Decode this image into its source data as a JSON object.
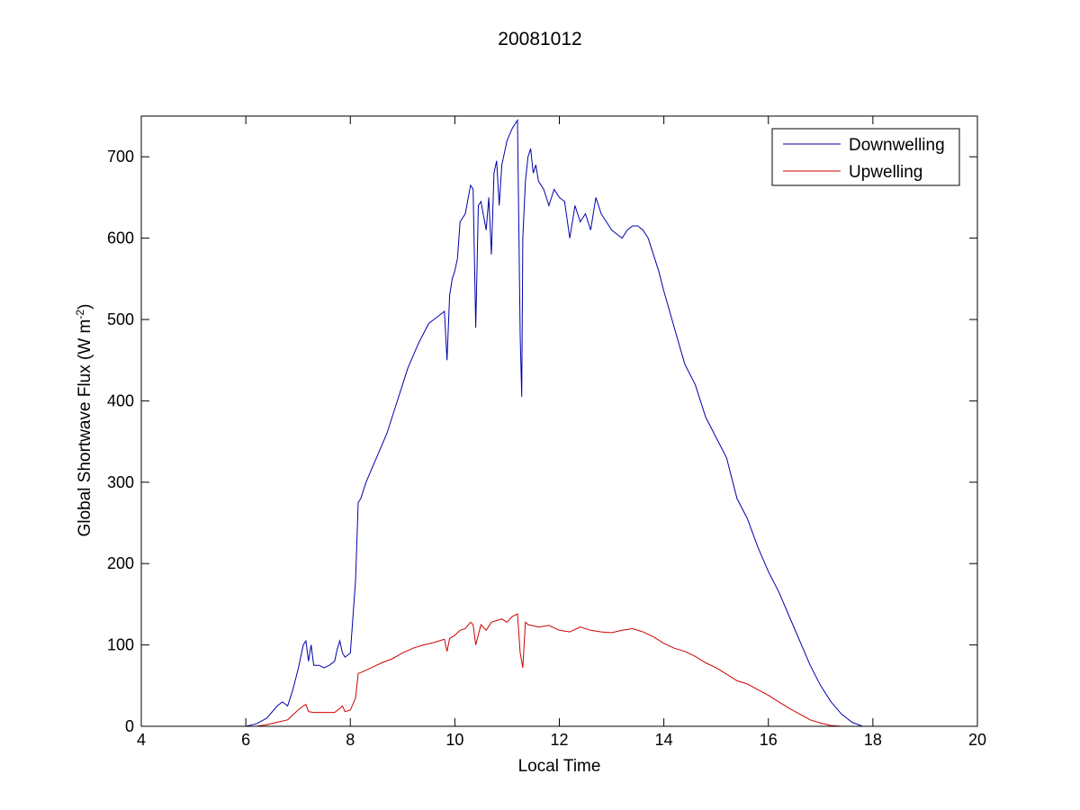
{
  "chart_data": {
    "type": "line",
    "title": "20081012",
    "xlabel": "Local Time",
    "ylabel": {
      "text": "Global Shortwave Flux (W m",
      "sup": "-2",
      "close": ")"
    },
    "xlim": [
      4,
      20
    ],
    "ylim": [
      0,
      750
    ],
    "xticks": [
      4,
      6,
      8,
      10,
      12,
      14,
      16,
      18,
      20
    ],
    "yticks": [
      0,
      100,
      200,
      300,
      400,
      500,
      600,
      700
    ],
    "grid": false,
    "legend_position": "top-right",
    "series": [
      {
        "name": "Downwelling",
        "color": "#0000aa",
        "x": [
          6.0,
          6.2,
          6.4,
          6.6,
          6.7,
          6.8,
          6.9,
          7.0,
          7.1,
          7.15,
          7.2,
          7.25,
          7.3,
          7.4,
          7.5,
          7.6,
          7.7,
          7.75,
          7.8,
          7.85,
          7.9,
          8.0,
          8.1,
          8.15,
          8.2,
          8.3,
          8.5,
          8.7,
          8.9,
          9.0,
          9.1,
          9.3,
          9.5,
          9.6,
          9.7,
          9.8,
          9.85,
          9.9,
          9.95,
          10.0,
          10.05,
          10.1,
          10.2,
          10.3,
          10.35,
          10.4,
          10.45,
          10.5,
          10.6,
          10.65,
          10.7,
          10.75,
          10.8,
          10.85,
          10.9,
          11.0,
          11.1,
          11.2,
          11.25,
          11.28,
          11.3,
          11.35,
          11.4,
          11.45,
          11.5,
          11.55,
          11.6,
          11.7,
          11.8,
          11.9,
          12.0,
          12.1,
          12.2,
          12.3,
          12.4,
          12.5,
          12.6,
          12.7,
          12.8,
          12.9,
          13.0,
          13.1,
          13.2,
          13.3,
          13.4,
          13.5,
          13.6,
          13.7,
          13.8,
          13.9,
          14.0,
          14.2,
          14.4,
          14.6,
          14.8,
          15.0,
          15.2,
          15.4,
          15.6,
          15.8,
          16.0,
          16.2,
          16.4,
          16.6,
          16.8,
          17.0,
          17.2,
          17.4,
          17.6,
          17.8
        ],
        "y": [
          0,
          3,
          10,
          25,
          30,
          25,
          45,
          70,
          100,
          105,
          80,
          100,
          75,
          75,
          72,
          75,
          80,
          95,
          105,
          90,
          85,
          90,
          180,
          275,
          280,
          300,
          330,
          360,
          400,
          420,
          440,
          470,
          495,
          500,
          505,
          510,
          450,
          530,
          550,
          560,
          575,
          620,
          630,
          665,
          660,
          490,
          640,
          645,
          610,
          650,
          580,
          680,
          695,
          640,
          690,
          720,
          735,
          745,
          480,
          405,
          600,
          670,
          700,
          710,
          680,
          690,
          670,
          660,
          640,
          660,
          650,
          645,
          600,
          640,
          620,
          630,
          610,
          650,
          630,
          620,
          610,
          605,
          600,
          610,
          615,
          615,
          610,
          600,
          580,
          560,
          535,
          490,
          445,
          420,
          380,
          355,
          330,
          280,
          255,
          220,
          190,
          165,
          135,
          105,
          75,
          50,
          30,
          15,
          5,
          0
        ],
        "line_width": 1
      },
      {
        "name": "Upwelling",
        "color": "#cc0000",
        "x": [
          6.0,
          6.2,
          6.4,
          6.6,
          6.8,
          7.0,
          7.1,
          7.15,
          7.2,
          7.3,
          7.5,
          7.7,
          7.8,
          7.85,
          7.9,
          8.0,
          8.1,
          8.15,
          8.2,
          8.4,
          8.6,
          8.8,
          9.0,
          9.2,
          9.4,
          9.6,
          9.8,
          9.85,
          9.9,
          10.0,
          10.1,
          10.2,
          10.3,
          10.35,
          10.4,
          10.5,
          10.6,
          10.7,
          10.8,
          10.9,
          11.0,
          11.1,
          11.2,
          11.25,
          11.3,
          11.35,
          11.4,
          11.6,
          11.8,
          12.0,
          12.2,
          12.4,
          12.6,
          12.8,
          13.0,
          13.2,
          13.4,
          13.6,
          13.8,
          14.0,
          14.2,
          14.4,
          14.6,
          14.8,
          15.0,
          15.2,
          15.4,
          15.6,
          15.8,
          16.0,
          16.2,
          16.4,
          16.6,
          16.8,
          17.0,
          17.2,
          17.4,
          17.5,
          17.6
        ],
        "y": [
          0,
          0,
          2,
          5,
          8,
          20,
          25,
          27,
          18,
          17,
          17,
          17,
          22,
          25,
          18,
          20,
          35,
          65,
          66,
          72,
          78,
          83,
          90,
          96,
          100,
          103,
          107,
          92,
          108,
          112,
          118,
          120,
          128,
          125,
          100,
          125,
          118,
          128,
          130,
          132,
          128,
          135,
          138,
          90,
          72,
          128,
          125,
          122,
          124,
          118,
          116,
          122,
          118,
          116,
          115,
          118,
          120,
          116,
          110,
          102,
          96,
          92,
          86,
          78,
          72,
          64,
          56,
          52,
          45,
          38,
          30,
          22,
          15,
          8,
          4,
          1,
          0,
          0,
          0
        ],
        "line_width": 1
      }
    ]
  }
}
